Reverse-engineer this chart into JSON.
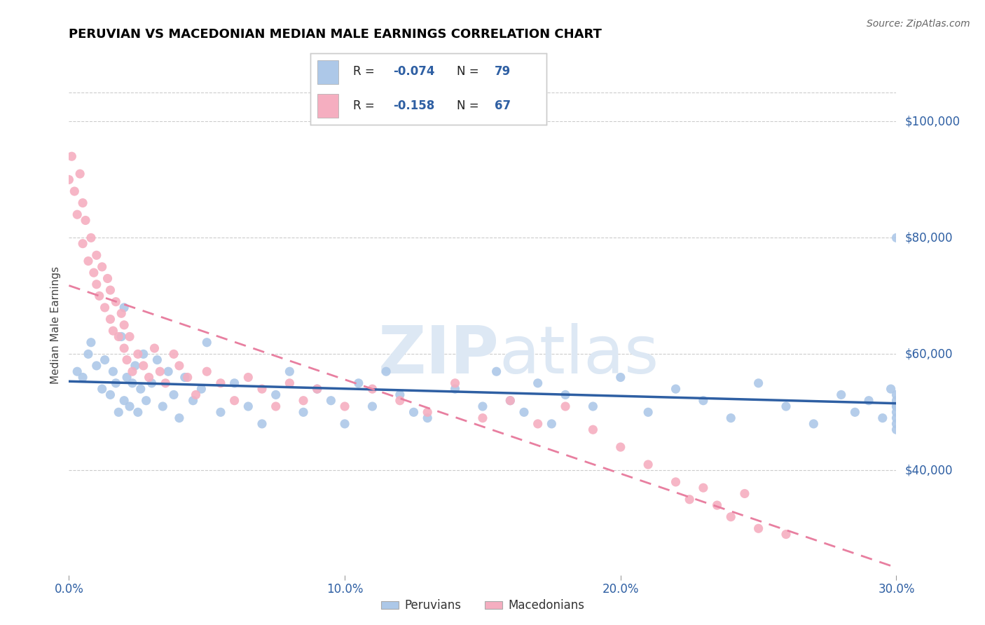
{
  "title": "PERUVIAN VS MACEDONIAN MEDIAN MALE EARNINGS CORRELATION CHART",
  "source": "Source: ZipAtlas.com",
  "ylabel": "Median Male Earnings",
  "xlim": [
    0.0,
    0.3
  ],
  "ylim": [
    22000,
    108000
  ],
  "yticks": [
    40000,
    60000,
    80000,
    100000
  ],
  "ytick_labels": [
    "$40,000",
    "$60,000",
    "$80,000",
    "$100,000"
  ],
  "peruvian_color": "#adc8e8",
  "macedonian_color": "#f5aec0",
  "peruvian_line_color": "#2e5fa3",
  "macedonian_line_color": "#e87fa0",
  "peruvian_x": [
    0.003,
    0.005,
    0.007,
    0.008,
    0.01,
    0.012,
    0.013,
    0.015,
    0.016,
    0.017,
    0.018,
    0.019,
    0.02,
    0.02,
    0.021,
    0.022,
    0.023,
    0.024,
    0.025,
    0.026,
    0.027,
    0.028,
    0.03,
    0.032,
    0.034,
    0.036,
    0.038,
    0.04,
    0.042,
    0.045,
    0.048,
    0.05,
    0.055,
    0.06,
    0.065,
    0.07,
    0.075,
    0.08,
    0.085,
    0.09,
    0.095,
    0.1,
    0.105,
    0.11,
    0.115,
    0.12,
    0.125,
    0.13,
    0.14,
    0.15,
    0.155,
    0.16,
    0.165,
    0.17,
    0.175,
    0.18,
    0.19,
    0.2,
    0.21,
    0.22,
    0.23,
    0.24,
    0.25,
    0.26,
    0.27,
    0.28,
    0.285,
    0.29,
    0.295,
    0.298,
    0.3,
    0.3,
    0.3,
    0.3,
    0.3,
    0.3,
    0.3,
    0.3,
    0.3
  ],
  "peruvian_y": [
    57000,
    56000,
    60000,
    62000,
    58000,
    54000,
    59000,
    53000,
    57000,
    55000,
    50000,
    63000,
    52000,
    68000,
    56000,
    51000,
    55000,
    58000,
    50000,
    54000,
    60000,
    52000,
    55000,
    59000,
    51000,
    57000,
    53000,
    49000,
    56000,
    52000,
    54000,
    62000,
    50000,
    55000,
    51000,
    48000,
    53000,
    57000,
    50000,
    54000,
    52000,
    48000,
    55000,
    51000,
    57000,
    53000,
    50000,
    49000,
    54000,
    51000,
    57000,
    52000,
    50000,
    55000,
    48000,
    53000,
    51000,
    56000,
    50000,
    54000,
    52000,
    49000,
    55000,
    51000,
    48000,
    53000,
    50000,
    52000,
    49000,
    54000,
    47000,
    51000,
    53000,
    50000,
    48000,
    52000,
    80000,
    49000,
    51000
  ],
  "macedonian_x": [
    0.0,
    0.001,
    0.002,
    0.003,
    0.004,
    0.005,
    0.005,
    0.006,
    0.007,
    0.008,
    0.009,
    0.01,
    0.01,
    0.011,
    0.012,
    0.013,
    0.014,
    0.015,
    0.015,
    0.016,
    0.017,
    0.018,
    0.019,
    0.02,
    0.02,
    0.021,
    0.022,
    0.023,
    0.025,
    0.027,
    0.029,
    0.031,
    0.033,
    0.035,
    0.038,
    0.04,
    0.043,
    0.046,
    0.05,
    0.055,
    0.06,
    0.065,
    0.07,
    0.075,
    0.08,
    0.085,
    0.09,
    0.1,
    0.11,
    0.12,
    0.13,
    0.14,
    0.15,
    0.16,
    0.17,
    0.18,
    0.19,
    0.2,
    0.21,
    0.22,
    0.225,
    0.23,
    0.235,
    0.24,
    0.245,
    0.25,
    0.26
  ],
  "macedonian_y": [
    90000,
    94000,
    88000,
    84000,
    91000,
    86000,
    79000,
    83000,
    76000,
    80000,
    74000,
    72000,
    77000,
    70000,
    75000,
    68000,
    73000,
    66000,
    71000,
    64000,
    69000,
    63000,
    67000,
    61000,
    65000,
    59000,
    63000,
    57000,
    60000,
    58000,
    56000,
    61000,
    57000,
    55000,
    60000,
    58000,
    56000,
    53000,
    57000,
    55000,
    52000,
    56000,
    54000,
    51000,
    55000,
    52000,
    54000,
    51000,
    54000,
    52000,
    50000,
    55000,
    49000,
    52000,
    48000,
    51000,
    47000,
    44000,
    41000,
    38000,
    35000,
    37000,
    34000,
    32000,
    36000,
    30000,
    29000
  ]
}
